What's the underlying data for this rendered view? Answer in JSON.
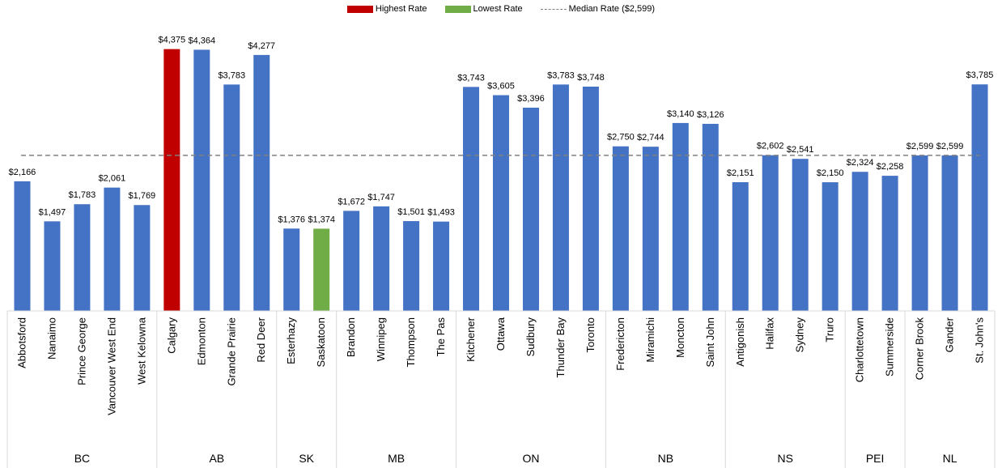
{
  "colors": {
    "default": "#4472C4",
    "highest": "#C00000",
    "lowest": "#70AD47",
    "median": "#808080",
    "grid": "#D9D9D9"
  },
  "legend": {
    "highest": "Highest Rate",
    "lowest": "Lowest Rate",
    "median": "Median Rate ($2,599)"
  },
  "chart_data": {
    "type": "bar",
    "title": "",
    "xlabel": "",
    "ylabel": "",
    "ylim": [
      0,
      4600
    ],
    "grid": false,
    "legend_position": "top",
    "median": 2599,
    "highest_index": 5,
    "lowest_index": 10,
    "groups": [
      {
        "name": "BC",
        "cities": [
          "Abbotsford",
          "Nanaimo",
          "Prince George",
          "Vancouver West End",
          "West Kelowna"
        ],
        "values": [
          2166,
          1497,
          1783,
          2061,
          1769
        ],
        "labels": [
          "$2,166",
          "$1,497",
          "$1,783",
          "$2,061",
          "$1,769"
        ]
      },
      {
        "name": "AB",
        "cities": [
          "Calgary",
          "Edmonton",
          "Grande Prairie",
          "Red Deer"
        ],
        "values": [
          4375,
          4364,
          3783,
          4277
        ],
        "labels": [
          "$4,375",
          "$4,364",
          "$3,783",
          "$4,277"
        ]
      },
      {
        "name": "SK",
        "cities": [
          "Esterhazy",
          "Saskatoon"
        ],
        "values": [
          1376,
          1374
        ],
        "labels": [
          "$1,376",
          "$1,374"
        ]
      },
      {
        "name": "MB",
        "cities": [
          "Brandon",
          "Winnipeg",
          "Thompson",
          "The Pas"
        ],
        "values": [
          1672,
          1747,
          1501,
          1493
        ],
        "labels": [
          "$1,672",
          "$1,747",
          "$1,501",
          "$1,493"
        ]
      },
      {
        "name": "ON",
        "cities": [
          "Kitchener",
          "Ottawa",
          "Sudbury",
          "Thunder Bay",
          "Toronto"
        ],
        "values": [
          3743,
          3605,
          3396,
          3783,
          3748
        ],
        "labels": [
          "$3,743",
          "$3,605",
          "$3,396",
          "$3,783",
          "$3,748"
        ]
      },
      {
        "name": "NB",
        "cities": [
          "Fredericton",
          "Miramichi",
          "Moncton",
          "Saint John"
        ],
        "values": [
          2750,
          2744,
          3140,
          3126
        ],
        "labels": [
          "$2,750",
          "$2,744",
          "$3,140",
          "$3,126"
        ]
      },
      {
        "name": "NS",
        "cities": [
          "Antigonish",
          "Halifax",
          "Sydney",
          "Truro"
        ],
        "values": [
          2151,
          2602,
          2541,
          2150
        ],
        "labels": [
          "$2,151",
          "$2,602",
          "$2,541",
          "$2,150"
        ]
      },
      {
        "name": "PEI",
        "cities": [
          "Charlottetown",
          "Summerside"
        ],
        "values": [
          2324,
          2258
        ],
        "labels": [
          "$2,324",
          "$2,258"
        ]
      },
      {
        "name": "NL",
        "cities": [
          "Corner Brook",
          "Gander",
          "St. John's"
        ],
        "values": [
          2599,
          2599,
          3785
        ],
        "labels": [
          "$2,599",
          "$2,599",
          "$3,785"
        ]
      }
    ]
  }
}
